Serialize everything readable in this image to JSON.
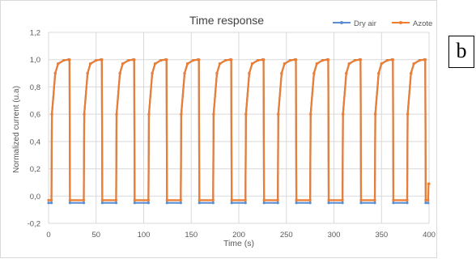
{
  "panel_label": "b",
  "chart_data": {
    "type": "line",
    "title": "Time response",
    "xlabel": "Time (s)",
    "ylabel": "Normalized current (u.a)",
    "xlim": [
      0,
      400
    ],
    "ylim": [
      -0.2,
      1.2
    ],
    "x_ticks": [
      "0",
      "50",
      "100",
      "150",
      "200",
      "250",
      "300",
      "350",
      "400"
    ],
    "y_ticks": [
      "-0,2",
      "0,0",
      "0,2",
      "0,4",
      "0,6",
      "0,8",
      "1,0",
      "1,2"
    ],
    "grid": true,
    "legend_position": "top-right",
    "cycle_period_s": 34,
    "pulse_count": 12,
    "series": [
      {
        "name": "Dry air",
        "color": "#5b8fd1",
        "x": [
          0,
          3,
          3.5,
          7,
          10,
          16,
          21,
          22,
          22.5,
          37,
          37.5,
          41,
          44,
          50,
          55,
          56,
          56.5,
          71,
          71.5,
          75,
          78,
          84,
          89,
          90,
          90.5,
          105,
          105.5,
          109,
          112,
          118,
          123,
          124,
          124.5,
          139,
          139.5,
          143,
          146,
          152,
          157,
          158,
          158.5,
          173,
          173.5,
          177,
          180,
          186,
          191,
          192,
          192.5,
          207,
          207.5,
          211,
          214,
          220,
          225,
          226,
          226.5,
          241,
          241.5,
          245,
          248,
          254,
          259,
          260,
          260.5,
          275,
          275.5,
          279,
          282,
          288,
          293,
          294,
          294.5,
          309,
          309.5,
          313,
          316,
          322,
          327,
          328,
          328.5,
          343,
          343.5,
          347,
          350,
          356,
          361,
          362,
          362.5,
          377,
          377.5,
          381,
          384,
          390,
          395,
          396,
          396.5,
          399
        ],
        "y": [
          -0.05,
          -0.05,
          0.6,
          0.9,
          0.97,
          0.995,
          1.0,
          1.0,
          -0.05,
          -0.05,
          0.6,
          0.9,
          0.97,
          0.995,
          1.0,
          1.0,
          -0.05,
          -0.05,
          0.6,
          0.9,
          0.97,
          0.995,
          1.0,
          1.0,
          -0.05,
          -0.05,
          0.6,
          0.9,
          0.97,
          0.995,
          1.0,
          1.0,
          -0.05,
          -0.05,
          0.6,
          0.9,
          0.97,
          0.995,
          1.0,
          1.0,
          -0.05,
          -0.05,
          0.6,
          0.9,
          0.97,
          0.995,
          1.0,
          1.0,
          -0.05,
          -0.05,
          0.6,
          0.9,
          0.97,
          0.995,
          1.0,
          1.0,
          -0.05,
          -0.05,
          0.6,
          0.9,
          0.97,
          0.995,
          1.0,
          1.0,
          -0.05,
          -0.05,
          0.6,
          0.9,
          0.97,
          0.995,
          1.0,
          1.0,
          -0.05,
          -0.05,
          0.6,
          0.9,
          0.97,
          0.995,
          1.0,
          1.0,
          -0.05,
          -0.05,
          0.6,
          0.9,
          0.97,
          0.995,
          1.0,
          1.0,
          -0.05,
          -0.05,
          0.6,
          0.9,
          0.97,
          0.995,
          1.0,
          1.0,
          -0.05,
          -0.05
        ]
      },
      {
        "name": "Azote",
        "color": "#ed7d31",
        "x": [
          0,
          3,
          3.5,
          7,
          10,
          16,
          21,
          22,
          22.5,
          37,
          37.5,
          41,
          44,
          50,
          55,
          56,
          56.5,
          71,
          71.5,
          75,
          78,
          84,
          89,
          90,
          90.5,
          105,
          105.5,
          109,
          112,
          118,
          123,
          124,
          124.5,
          139,
          139.5,
          143,
          146,
          152,
          157,
          158,
          158.5,
          173,
          173.5,
          177,
          180,
          186,
          191,
          192,
          192.5,
          207,
          207.5,
          211,
          214,
          220,
          225,
          226,
          226.5,
          241,
          241.5,
          245,
          248,
          254,
          259,
          260,
          260.5,
          275,
          275.5,
          279,
          282,
          288,
          293,
          294,
          294.5,
          309,
          309.5,
          313,
          316,
          322,
          327,
          328,
          328.5,
          343,
          343.5,
          347,
          350,
          356,
          361,
          362,
          362.5,
          377,
          377.5,
          381,
          384,
          390,
          395,
          396,
          396.5,
          399,
          399.5,
          400
        ],
        "y": [
          -0.03,
          -0.03,
          0.6,
          0.9,
          0.97,
          0.995,
          1.0,
          1.0,
          -0.03,
          -0.03,
          0.6,
          0.9,
          0.97,
          0.995,
          1.0,
          1.0,
          -0.03,
          -0.03,
          0.6,
          0.9,
          0.97,
          0.995,
          1.0,
          1.0,
          -0.03,
          -0.03,
          0.6,
          0.9,
          0.97,
          0.995,
          1.0,
          1.0,
          -0.03,
          -0.03,
          0.6,
          0.9,
          0.97,
          0.995,
          1.0,
          1.0,
          -0.03,
          -0.03,
          0.6,
          0.9,
          0.97,
          0.995,
          1.0,
          1.0,
          -0.03,
          -0.03,
          0.6,
          0.9,
          0.97,
          0.995,
          1.0,
          1.0,
          -0.03,
          -0.03,
          0.6,
          0.9,
          0.97,
          0.995,
          1.0,
          1.0,
          -0.03,
          -0.03,
          0.6,
          0.9,
          0.97,
          0.995,
          1.0,
          1.0,
          -0.03,
          -0.03,
          0.6,
          0.9,
          0.97,
          0.995,
          1.0,
          1.0,
          -0.03,
          -0.03,
          0.6,
          0.9,
          0.97,
          0.995,
          1.0,
          1.0,
          -0.03,
          -0.03,
          0.6,
          0.9,
          0.97,
          0.995,
          1.0,
          1.0,
          -0.03,
          -0.03,
          0.09,
          0.09
        ]
      }
    ]
  }
}
